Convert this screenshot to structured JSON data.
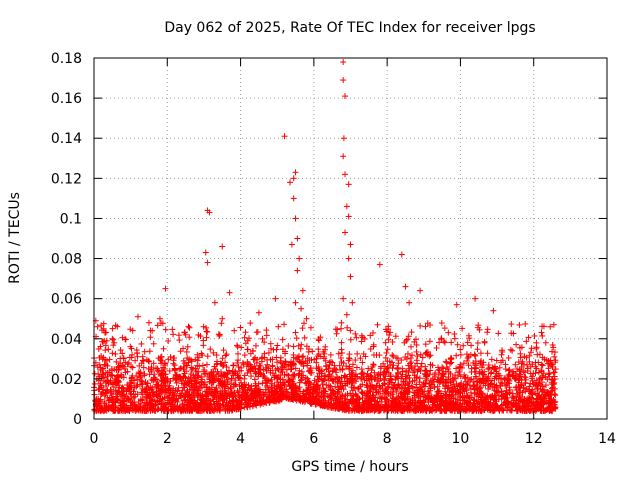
{
  "chart_data": {
    "type": "scatter",
    "title": "Day 062 of 2025, Rate Of TEC Index for receiver lpgs",
    "xlabel": "GPS time / hours",
    "ylabel": "ROTI / TECUs",
    "xlim": [
      0,
      14
    ],
    "ylim": [
      0,
      0.18
    ],
    "xticks": [
      "0",
      "2",
      "4",
      "6",
      "8",
      "10",
      "12",
      "14"
    ],
    "xtick_values": [
      0,
      2,
      4,
      6,
      8,
      10,
      12,
      14
    ],
    "yticks": [
      "0",
      "0.02",
      "0.04",
      "0.06",
      "0.08",
      "0.1",
      "0.12",
      "0.14",
      "0.16",
      "0.18"
    ],
    "ytick_values": [
      0,
      0.02,
      0.04,
      0.06,
      0.08,
      0.1,
      0.12,
      0.14,
      0.16,
      0.18
    ],
    "grid": true,
    "marker": "+",
    "marker_color": "#ff0000",
    "series": [
      {
        "name": "ROTI",
        "x_range_hours": [
          0,
          12.6
        ],
        "bulk_ylim": [
          0.004,
          0.035
        ],
        "points": [
          [
            0.05,
            0.049
          ],
          [
            0.1,
            0.046
          ],
          [
            0.3,
            0.043
          ],
          [
            0.5,
            0.04
          ],
          [
            0.55,
            0.038
          ],
          [
            1.2,
            0.051
          ],
          [
            1.5,
            0.048
          ],
          [
            1.8,
            0.05
          ],
          [
            1.95,
            0.065
          ],
          [
            2.5,
            0.042
          ],
          [
            3.1,
            0.104
          ],
          [
            3.15,
            0.103
          ],
          [
            3.05,
            0.083
          ],
          [
            3.1,
            0.078
          ],
          [
            3.3,
            0.058
          ],
          [
            3.5,
            0.086
          ],
          [
            3.7,
            0.063
          ],
          [
            3.5,
            0.05
          ],
          [
            4.5,
            0.053
          ],
          [
            4.95,
            0.06
          ],
          [
            5.2,
            0.141
          ],
          [
            5.35,
            0.118
          ],
          [
            5.45,
            0.12
          ],
          [
            5.5,
            0.123
          ],
          [
            5.45,
            0.11
          ],
          [
            5.5,
            0.1
          ],
          [
            5.55,
            0.09
          ],
          [
            5.4,
            0.087
          ],
          [
            5.6,
            0.08
          ],
          [
            5.55,
            0.074
          ],
          [
            5.7,
            0.064
          ],
          [
            5.5,
            0.058
          ],
          [
            5.65,
            0.055
          ],
          [
            5.8,
            0.05
          ],
          [
            6.8,
            0.178
          ],
          [
            6.8,
            0.169
          ],
          [
            6.85,
            0.161
          ],
          [
            6.82,
            0.14
          ],
          [
            6.8,
            0.131
          ],
          [
            6.85,
            0.122
          ],
          [
            6.95,
            0.117
          ],
          [
            6.9,
            0.106
          ],
          [
            6.95,
            0.101
          ],
          [
            6.85,
            0.093
          ],
          [
            7.0,
            0.087
          ],
          [
            6.95,
            0.08
          ],
          [
            7.0,
            0.071
          ],
          [
            6.8,
            0.06
          ],
          [
            7.05,
            0.058
          ],
          [
            6.9,
            0.052
          ],
          [
            7.8,
            0.077
          ],
          [
            8.4,
            0.082
          ],
          [
            8.5,
            0.066
          ],
          [
            8.9,
            0.064
          ],
          [
            8.6,
            0.058
          ],
          [
            9.9,
            0.057
          ],
          [
            10.4,
            0.06
          ],
          [
            10.9,
            0.054
          ],
          [
            12.45,
            0.046
          ],
          [
            12.55,
            0.047
          ]
        ]
      }
    ]
  }
}
